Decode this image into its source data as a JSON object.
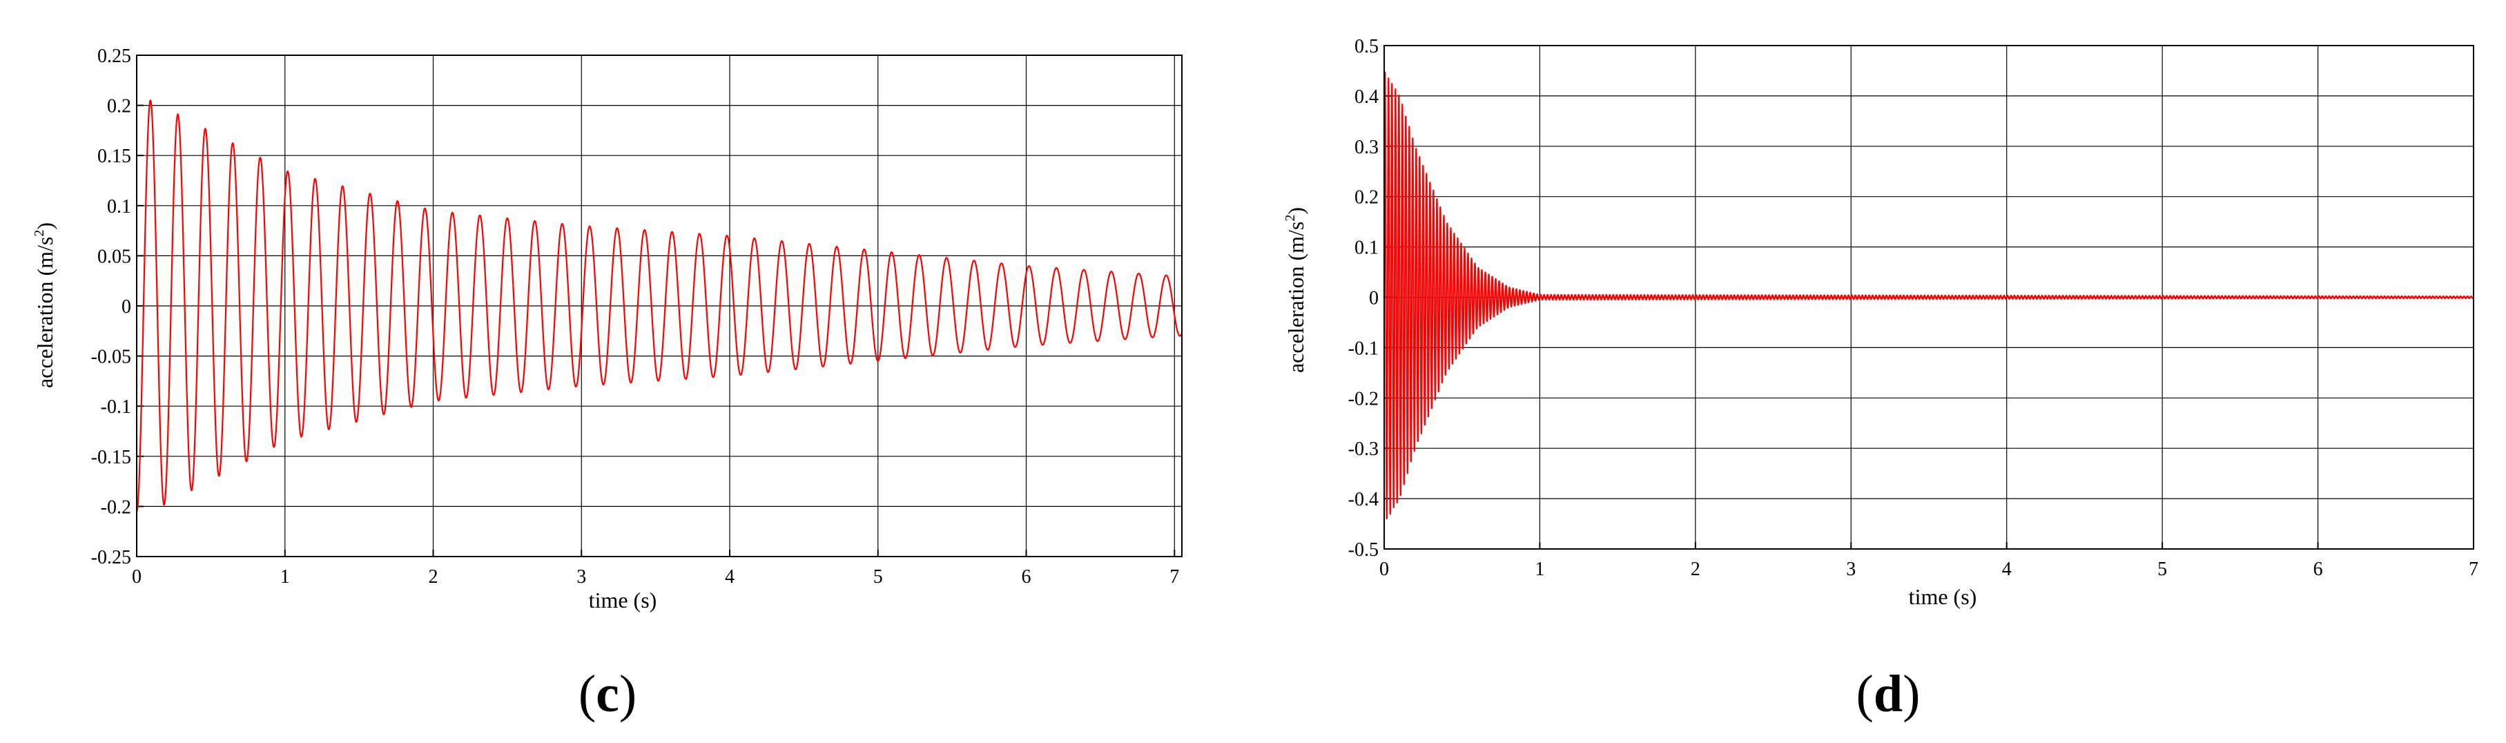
{
  "colors": {
    "series": "#ff0000",
    "axis": "#000000",
    "background": "#ffffff"
  },
  "chart_data": [
    {
      "type": "line",
      "panel_label": "c",
      "xlabel": "time (s)",
      "ylabel": "acceleration (m/s²)",
      "ylabel_unit_base": "(m/s",
      "ylabel_unit_exp": "2",
      "ylabel_unit_tail": ")",
      "xlim": [
        0,
        7.05
      ],
      "ylim": [
        -0.25,
        0.25
      ],
      "xticks": [
        0,
        1,
        2,
        3,
        4,
        5,
        6,
        7
      ],
      "xtick_labels": [
        "0",
        "1",
        "2",
        "3",
        "4",
        "5",
        "6",
        "7"
      ],
      "yticks": [
        0.25,
        0.2,
        0.15,
        0.1,
        0.05,
        0,
        -0.05,
        -0.1,
        -0.15,
        -0.2,
        -0.25
      ],
      "ytick_labels": [
        "0.25",
        "0.2",
        "0.15",
        "0.1",
        "0.05",
        "0",
        "-0.05",
        "-0.1",
        "-0.15",
        "-0.2",
        "-0.25"
      ],
      "grid": true,
      "series": [
        {
          "signal": "decaying sinusoid",
          "frequency_hz": 5.4,
          "envelope_peaks": [
            [
              0.1,
              0.205
            ],
            [
              1.0,
              0.135
            ],
            [
              2.0,
              0.095
            ],
            [
              3.0,
              0.08
            ],
            [
              4.0,
              0.07
            ],
            [
              5.0,
              0.055
            ],
            [
              6.0,
              0.04
            ],
            [
              7.0,
              0.03
            ]
          ],
          "start_value": -0.2
        }
      ]
    },
    {
      "type": "line",
      "panel_label": "d",
      "xlabel": "time (s)",
      "ylabel": "acceleration (m/s²)",
      "ylabel_unit_base": "(m/s",
      "ylabel_unit_exp": "2",
      "ylabel_unit_tail": ")",
      "xlim": [
        0,
        7
      ],
      "ylim": [
        -0.5,
        0.5
      ],
      "xticks": [
        0,
        1,
        2,
        3,
        4,
        5,
        6,
        7
      ],
      "xtick_labels": [
        "0",
        "1",
        "2",
        "3",
        "4",
        "5",
        "6",
        "7"
      ],
      "yticks": [
        0.5,
        0.4,
        0.3,
        0.2,
        0.1,
        0,
        -0.1,
        -0.2,
        -0.3,
        -0.4,
        -0.5
      ],
      "ytick_labels": [
        "0.5",
        "0.4",
        "0.3",
        "0.2",
        "0.1",
        "0",
        "-0.1",
        "-0.2",
        "-0.3",
        "-0.4",
        "-0.5"
      ],
      "grid": true,
      "series": [
        {
          "signal": "rapidly decaying high-frequency oscillation",
          "frequency_hz": 45,
          "envelope_peaks": [
            [
              0.0,
              0.45
            ],
            [
              0.1,
              0.4
            ],
            [
              0.2,
              0.3
            ],
            [
              0.4,
              0.15
            ],
            [
              0.6,
              0.06
            ],
            [
              0.8,
              0.02
            ],
            [
              1.0,
              0.005
            ],
            [
              7.0,
              0.002
            ]
          ],
          "start_value": 0
        }
      ]
    }
  ]
}
